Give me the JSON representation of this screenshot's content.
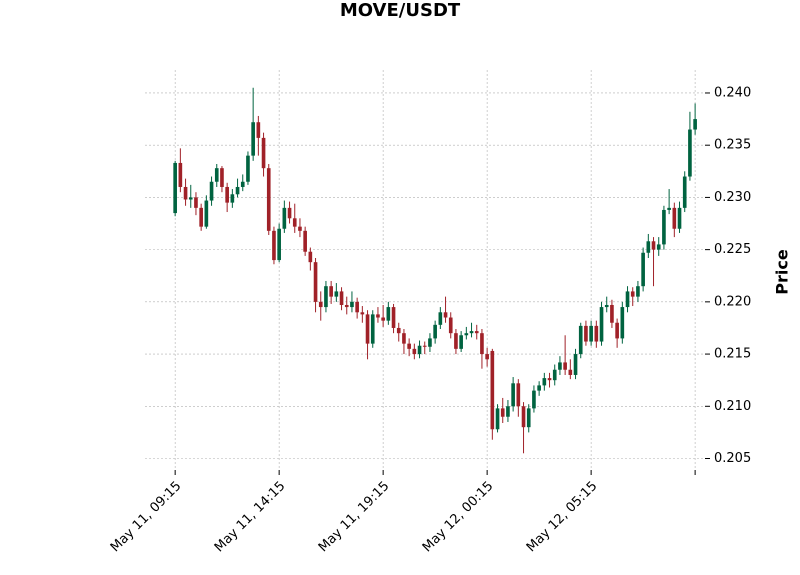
{
  "chart_data": {
    "type": "candlestick",
    "title": "MOVE/USDT",
    "y_label": "Price",
    "categories": [
      "May 11, 09:15",
      null,
      null,
      null,
      null,
      null,
      null,
      null,
      null,
      null,
      null,
      null,
      null,
      null,
      null,
      null,
      null,
      null,
      null,
      null,
      "May 11, 14:15",
      null,
      null,
      null,
      null,
      null,
      null,
      null,
      null,
      null,
      null,
      null,
      null,
      null,
      null,
      null,
      null,
      null,
      null,
      null,
      "May 11, 19:15",
      null,
      null,
      null,
      null,
      null,
      null,
      null,
      null,
      null,
      null,
      null,
      null,
      null,
      null,
      null,
      null,
      null,
      null,
      null,
      "May 12, 00:15",
      null,
      null,
      null,
      null,
      null,
      null,
      null,
      null,
      null,
      null,
      null,
      null,
      null,
      null,
      null,
      null,
      null,
      null,
      null,
      "May 12, 05:15",
      null,
      null,
      null,
      null,
      null,
      null,
      null,
      null,
      null,
      null,
      null,
      null,
      null,
      null,
      null,
      null,
      null,
      null,
      null,
      null
    ],
    "open": [
      0.2285,
      0.2333,
      0.231,
      0.2298,
      0.23,
      0.229,
      0.2272,
      0.2297,
      0.2315,
      0.2328,
      0.231,
      0.2295,
      0.2303,
      0.231,
      0.2315,
      0.234,
      0.2372,
      0.2357,
      0.2328,
      0.2268,
      0.224,
      0.227,
      0.229,
      0.228,
      0.2272,
      0.2268,
      0.2248,
      0.2238,
      0.22,
      0.2195,
      0.2215,
      0.2205,
      0.221,
      0.2197,
      0.2195,
      0.22,
      0.219,
      0.2188,
      0.216,
      0.2188,
      0.2185,
      0.2182,
      0.2195,
      0.2175,
      0.217,
      0.216,
      0.2155,
      0.215,
      0.2158,
      0.2157,
      0.2165,
      0.2178,
      0.219,
      0.2185,
      0.217,
      0.2155,
      0.2168,
      0.217,
      0.2172,
      0.217,
      0.215,
      0.2153,
      0.2078,
      0.2098,
      0.209,
      0.21,
      0.2122,
      0.21,
      0.208,
      0.2098,
      0.2115,
      0.212,
      0.2127,
      0.2125,
      0.2135,
      0.2142,
      0.2135,
      0.213,
      0.215,
      0.2177,
      0.2162,
      0.2177,
      0.2162,
      0.2195,
      0.2197,
      0.218,
      0.2165,
      0.2195,
      0.221,
      0.2205,
      0.2215,
      0.2247,
      0.2258,
      0.225,
      0.2255,
      0.2288,
      0.229,
      0.227,
      0.229,
      0.232,
      0.2365
    ],
    "high": [
      0.2335,
      0.2347,
      0.2318,
      0.2312,
      0.2305,
      0.2294,
      0.2302,
      0.232,
      0.2332,
      0.233,
      0.2314,
      0.2308,
      0.2318,
      0.2322,
      0.2344,
      0.2405,
      0.2378,
      0.2362,
      0.2332,
      0.2272,
      0.2275,
      0.2297,
      0.2296,
      0.2294,
      0.228,
      0.2272,
      0.2252,
      0.2242,
      0.221,
      0.222,
      0.222,
      0.2218,
      0.2214,
      0.2205,
      0.221,
      0.2204,
      0.2196,
      0.2192,
      0.2192,
      0.2195,
      0.2197,
      0.22,
      0.2198,
      0.218,
      0.2174,
      0.2165,
      0.216,
      0.2163,
      0.2162,
      0.217,
      0.2182,
      0.2195,
      0.2205,
      0.219,
      0.2174,
      0.2172,
      0.2176,
      0.218,
      0.2178,
      0.2174,
      0.2156,
      0.2155,
      0.2102,
      0.2108,
      0.2106,
      0.2128,
      0.2126,
      0.2104,
      0.2102,
      0.212,
      0.2124,
      0.2132,
      0.2132,
      0.214,
      0.2148,
      0.2168,
      0.2145,
      0.2155,
      0.218,
      0.2182,
      0.2182,
      0.2182,
      0.22,
      0.2205,
      0.2202,
      0.2184,
      0.22,
      0.2215,
      0.2214,
      0.222,
      0.2252,
      0.2265,
      0.2262,
      0.2262,
      0.2292,
      0.2308,
      0.2295,
      0.2296,
      0.2325,
      0.2382,
      0.239
    ],
    "low": [
      0.2282,
      0.2305,
      0.2292,
      0.229,
      0.2283,
      0.2268,
      0.227,
      0.2292,
      0.231,
      0.2305,
      0.2286,
      0.229,
      0.23,
      0.2306,
      0.2312,
      0.2335,
      0.234,
      0.232,
      0.2264,
      0.2236,
      0.2238,
      0.2266,
      0.2275,
      0.2266,
      0.2262,
      0.2244,
      0.223,
      0.219,
      0.2182,
      0.219,
      0.2198,
      0.22,
      0.2192,
      0.2188,
      0.219,
      0.2184,
      0.218,
      0.2145,
      0.2156,
      0.218,
      0.2176,
      0.2178,
      0.217,
      0.2162,
      0.215,
      0.2148,
      0.2145,
      0.2146,
      0.215,
      0.2152,
      0.216,
      0.2174,
      0.218,
      0.2165,
      0.215,
      0.2152,
      0.2164,
      0.2166,
      0.2164,
      0.2136,
      0.2138,
      0.2068,
      0.2075,
      0.2084,
      0.2085,
      0.2095,
      0.209,
      0.2055,
      0.2075,
      0.2094,
      0.211,
      0.2115,
      0.2118,
      0.212,
      0.213,
      0.213,
      0.2126,
      0.2126,
      0.2146,
      0.2158,
      0.2158,
      0.2156,
      0.2158,
      0.219,
      0.2175,
      0.2156,
      0.216,
      0.219,
      0.2196,
      0.22,
      0.221,
      0.2242,
      0.2215,
      0.2244,
      0.225,
      0.2284,
      0.2262,
      0.2266,
      0.2286,
      0.2316,
      0.236
    ],
    "close": [
      0.2333,
      0.231,
      0.2298,
      0.23,
      0.229,
      0.2272,
      0.2297,
      0.2315,
      0.2328,
      0.231,
      0.2295,
      0.2303,
      0.231,
      0.2315,
      0.234,
      0.2372,
      0.2357,
      0.2328,
      0.2268,
      0.224,
      0.227,
      0.229,
      0.228,
      0.2272,
      0.2268,
      0.2248,
      0.2238,
      0.22,
      0.2195,
      0.2215,
      0.2205,
      0.221,
      0.2197,
      0.2195,
      0.22,
      0.219,
      0.2188,
      0.216,
      0.2188,
      0.2185,
      0.2182,
      0.2195,
      0.2175,
      0.217,
      0.216,
      0.2155,
      0.215,
      0.2158,
      0.2157,
      0.2165,
      0.2178,
      0.219,
      0.2185,
      0.217,
      0.2155,
      0.2168,
      0.217,
      0.2172,
      0.217,
      0.215,
      0.2145,
      0.2078,
      0.2098,
      0.209,
      0.21,
      0.2122,
      0.21,
      0.208,
      0.2098,
      0.2115,
      0.212,
      0.2127,
      0.2125,
      0.2135,
      0.2142,
      0.2135,
      0.213,
      0.215,
      0.2177,
      0.2162,
      0.2177,
      0.2162,
      0.2195,
      0.2197,
      0.218,
      0.2165,
      0.2195,
      0.221,
      0.2205,
      0.2215,
      0.2247,
      0.2258,
      0.225,
      0.2255,
      0.2288,
      0.229,
      0.227,
      0.229,
      0.232,
      0.2365,
      0.2375
    ],
    "up_color": "#006340",
    "down_color": "#a02128",
    "xlim": [
      -5.8,
      101.9
    ],
    "xticks": [
      0,
      20,
      40,
      60,
      80,
      100
    ],
    "ylim": [
      0.2039,
      0.2422
    ],
    "yticks": [
      0.205,
      {
        "value": 0.21,
        "label": "0.210"
      },
      0.215,
      {
        "value": 0.22,
        "label": "0.220"
      },
      0.225,
      {
        "value": 0.23,
        "label": "0.230"
      },
      0.235,
      {
        "value": 0.24,
        "label": "0.240"
      }
    ],
    "grid": true
  }
}
